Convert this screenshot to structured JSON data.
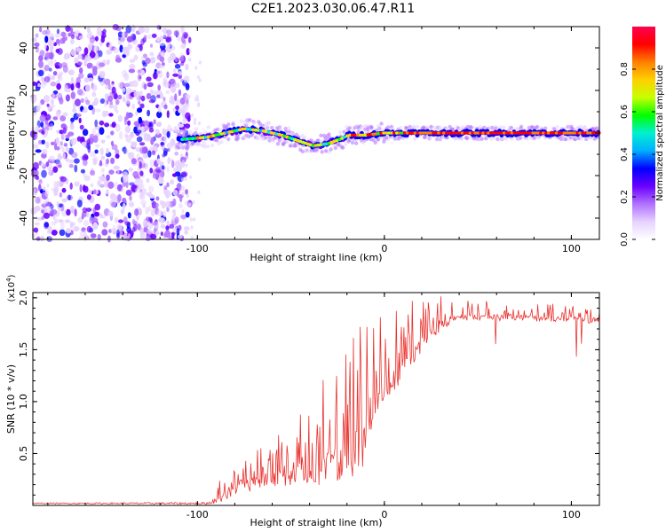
{
  "figure_title": "C2E1.2023.030.06.47.R11",
  "colors": {
    "snr_line": "#e8332f",
    "axis": "#000000",
    "colormap": [
      "#ffffff",
      "#e6d2ff",
      "#b070ff",
      "#6a00ff",
      "#0000ff",
      "#00b0ff",
      "#00f0d0",
      "#00ff00",
      "#c8ff00",
      "#ffd000",
      "#ff8000",
      "#ff0000",
      "#ff0050"
    ]
  },
  "chart_data": [
    {
      "type": "heatmap",
      "xlabel": "Height of straight line (km)",
      "ylabel": "Frequency (Hz)",
      "xlim": [
        -188,
        115
      ],
      "ylim": [
        -50,
        50
      ],
      "xticks": [
        -100,
        0,
        100
      ],
      "xtick_labels": [
        "-100",
        "0",
        "100"
      ],
      "yticks": [
        -40,
        -20,
        0,
        20,
        40
      ],
      "ytick_labels": [
        "-40",
        "-20",
        "0",
        "20",
        "40"
      ],
      "colorbar": {
        "label": "Normalized spectral amplitude",
        "range": [
          0.0,
          1.0
        ],
        "ticks": [
          0.0,
          0.2,
          0.4,
          0.6,
          0.8
        ],
        "tick_labels": [
          "0.0",
          "0.2",
          "0.4",
          "0.6",
          "0.8"
        ]
      },
      "noise_region_x": [
        -188,
        -108
      ],
      "ridge": [
        {
          "x": -108,
          "freq": -3
        },
        {
          "x": -95,
          "freq": -2
        },
        {
          "x": -85,
          "freq": 0
        },
        {
          "x": -75,
          "freq": 2
        },
        {
          "x": -65,
          "freq": 1
        },
        {
          "x": -55,
          "freq": -1
        },
        {
          "x": -45,
          "freq": -4
        },
        {
          "x": -38,
          "freq": -6
        },
        {
          "x": -30,
          "freq": -5
        },
        {
          "x": -24,
          "freq": -3
        },
        {
          "x": -19,
          "freq": -1
        },
        {
          "x": -10,
          "freq": -1
        },
        {
          "x": 0,
          "freq": 0
        },
        {
          "x": 20,
          "freq": 0
        },
        {
          "x": 60,
          "freq": 0
        },
        {
          "x": 115,
          "freq": 0
        }
      ]
    },
    {
      "type": "line",
      "xlabel": "Height of straight line (km)",
      "ylabel": "SNR (10 * v/v)",
      "y_multiplier": "(x10^4)",
      "y_multiplier_base": "(x10",
      "y_multiplier_exp": "4",
      "y_multiplier_close": ")",
      "xlim": [
        -188,
        115
      ],
      "ylim": [
        0,
        2.05
      ],
      "xticks": [
        -100,
        0,
        100
      ],
      "xtick_labels": [
        "-100",
        "0",
        "100"
      ],
      "yticks": [
        0.5,
        1.0,
        1.5,
        2.0
      ],
      "ytick_labels": [
        "0.5",
        "1.0",
        "1.5",
        "2.0"
      ],
      "series": [
        {
          "name": "SNR",
          "trend": [
            {
              "x": -188,
              "y": 0.02
            },
            {
              "x": -95,
              "y": 0.02
            },
            {
              "x": -90,
              "y": 0.08
            },
            {
              "x": -80,
              "y": 0.18
            },
            {
              "x": -70,
              "y": 0.28
            },
            {
              "x": -60,
              "y": 0.35
            },
            {
              "x": -50,
              "y": 0.4
            },
            {
              "x": -40,
              "y": 0.45
            },
            {
              "x": -30,
              "y": 0.55
            },
            {
              "x": -20,
              "y": 0.65
            },
            {
              "x": -12,
              "y": 0.8
            },
            {
              "x": -8,
              "y": 1.05
            },
            {
              "x": 0,
              "y": 1.25
            },
            {
              "x": 10,
              "y": 1.45
            },
            {
              "x": 20,
              "y": 1.65
            },
            {
              "x": 30,
              "y": 1.8
            },
            {
              "x": 40,
              "y": 1.84
            },
            {
              "x": 60,
              "y": 1.84
            },
            {
              "x": 80,
              "y": 1.83
            },
            {
              "x": 100,
              "y": 1.82
            },
            {
              "x": 115,
              "y": 1.8
            }
          ],
          "spread": [
            {
              "x": -188,
              "a": 0.005
            },
            {
              "x": -95,
              "a": 0.01
            },
            {
              "x": -90,
              "a": 0.08
            },
            {
              "x": -60,
              "a": 0.2
            },
            {
              "x": -30,
              "a": 0.4
            },
            {
              "x": -12,
              "a": 0.55
            },
            {
              "x": 0,
              "a": 0.35
            },
            {
              "x": 20,
              "a": 0.2
            },
            {
              "x": 40,
              "a": 0.08
            },
            {
              "x": 115,
              "a": 0.06
            }
          ]
        }
      ]
    }
  ]
}
